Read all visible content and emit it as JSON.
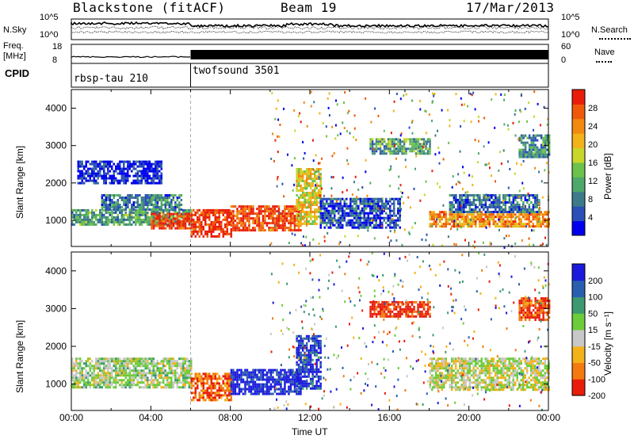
{
  "header": {
    "station": "Blackstone (fitACF)",
    "beam": "Beam 19",
    "date": "17/Mar/2013"
  },
  "noise_panel": {
    "left_label": "N.Sky",
    "right_label": "N.Search",
    "left_ticks": [
      "10^5",
      "10^0"
    ],
    "right_ticks": [
      "10^5",
      "10^0"
    ]
  },
  "freq_panel": {
    "left_label_top": "Freq.",
    "left_label_bottom": "[MHz]",
    "right_label": "Nave",
    "left_ticks": [
      "18",
      "8"
    ],
    "right_ticks": [
      "60",
      "0"
    ]
  },
  "cpid_panel": {
    "label": "CPID",
    "programs": [
      {
        "name": "rbsp-tau 210",
        "start_hour": 0
      },
      {
        "name": "twofsound 3501",
        "start_hour": 6
      }
    ]
  },
  "chart_data": [
    {
      "type": "heatmap",
      "name": "power",
      "xlabel": "Time UT",
      "ylabel": "Slant Range [km]",
      "xlim": [
        0,
        24
      ],
      "ylim": [
        300,
        4500
      ],
      "yticks": [
        1000,
        2000,
        3000,
        4000
      ],
      "colorbar_label": "Power [dB]",
      "colorbar_ticks": [
        "28",
        "24",
        "20",
        "16",
        "12",
        "8",
        "4"
      ],
      "colors": [
        "#0000ee",
        "#2a4fb8",
        "#3d7a8a",
        "#4ea86a",
        "#6cc24a",
        "#c8d62a",
        "#f2b21a",
        "#f28a10",
        "#ef5a0a",
        "#e81e0a"
      ],
      "regions": [
        {
          "t0": 0.0,
          "t1": 6.0,
          "r0": 900,
          "r1": 1300,
          "level": 0.35
        },
        {
          "t0": 1.5,
          "t1": 5.5,
          "r0": 1300,
          "r1": 1700,
          "level": 0.25
        },
        {
          "t0": 0.3,
          "t1": 4.5,
          "r0": 2000,
          "r1": 2600,
          "level": 0.05
        },
        {
          "t0": 4.0,
          "t1": 6.0,
          "r0": 800,
          "r1": 1200,
          "level": 0.95
        },
        {
          "t0": 6.0,
          "t1": 8.0,
          "r0": 550,
          "r1": 1300,
          "level": 0.95
        },
        {
          "t0": 8.0,
          "t1": 11.5,
          "r0": 750,
          "r1": 1400,
          "level": 0.9
        },
        {
          "t0": 11.3,
          "t1": 12.5,
          "r0": 900,
          "r1": 2400,
          "level": 0.6
        },
        {
          "t0": 12.5,
          "t1": 16.5,
          "r0": 800,
          "r1": 1600,
          "level": 0.15
        },
        {
          "t0": 15.0,
          "t1": 18.0,
          "r0": 2800,
          "r1": 3200,
          "level": 0.35
        },
        {
          "t0": 18.0,
          "t1": 24.0,
          "r0": 850,
          "r1": 1250,
          "level": 0.75
        },
        {
          "t0": 19.0,
          "t1": 23.5,
          "r0": 1200,
          "r1": 1700,
          "level": 0.2
        },
        {
          "t0": 22.5,
          "t1": 24.0,
          "r0": 2700,
          "r1": 3300,
          "level": 0.3
        }
      ]
    },
    {
      "type": "heatmap",
      "name": "velocity",
      "xlabel": "Time UT",
      "ylabel": "Slant Range [km]",
      "xlim": [
        0,
        24
      ],
      "ylim": [
        300,
        4500
      ],
      "yticks": [
        1000,
        2000,
        3000,
        4000
      ],
      "xticks": [
        "00:00",
        "04:00",
        "08:00",
        "12:00",
        "16:00",
        "20:00",
        "00:00"
      ],
      "colorbar_label": "Velocity [m s⁻¹]",
      "colorbar_ticks": [
        "200",
        "100",
        "50",
        "15",
        "-15",
        "-50",
        "-100",
        "-200"
      ],
      "colors": [
        "#1a1adc",
        "#2a5fb0",
        "#3d9a70",
        "#6ccc3a",
        "#c8c8c8",
        "#f2b21a",
        "#f27a10",
        "#e81e0a"
      ],
      "regions": [
        {
          "t0": 0.0,
          "t1": 6.0,
          "r0": 900,
          "r1": 1700,
          "level": 0.5
        },
        {
          "t0": 6.0,
          "t1": 8.0,
          "r0": 600,
          "r1": 1300,
          "level": 0.85
        },
        {
          "t0": 8.0,
          "t1": 11.5,
          "r0": 750,
          "r1": 1400,
          "level": 0.05
        },
        {
          "t0": 11.3,
          "t1": 12.5,
          "r0": 900,
          "r1": 2300,
          "level": 0.1
        },
        {
          "t0": 15.0,
          "t1": 18.0,
          "r0": 2800,
          "r1": 3200,
          "level": 0.95
        },
        {
          "t0": 18.0,
          "t1": 24.0,
          "r0": 850,
          "r1": 1700,
          "level": 0.55
        },
        {
          "t0": 22.5,
          "t1": 24.0,
          "r0": 2700,
          "r1": 3300,
          "level": 0.9
        }
      ]
    }
  ]
}
